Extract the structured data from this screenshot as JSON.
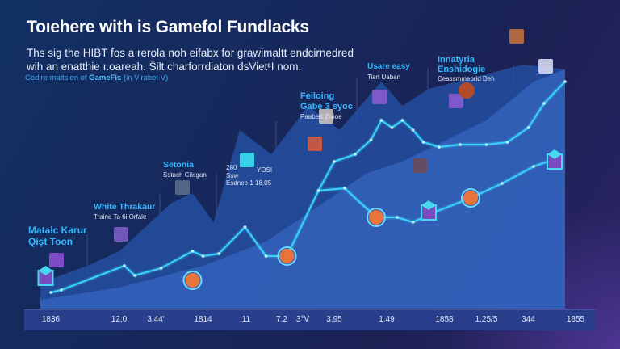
{
  "header": {
    "title": "Toıehere with is Gamefol Fundlacks",
    "subtitle_line1": "Ths sig the HIBT fos a rerola noh eifabx for grawimaltt endcirnedred",
    "subtitle_line2": "wih an enatthie ı.oareah. Ŝilt charforrdiaton dsVietᵋI nom.",
    "tagline_prefix": "Codire maitsion of ",
    "tagline_bold": "GameFis",
    "tagline_suffix": " (in Virabet V)"
  },
  "annotations": [
    {
      "title": "Matalc Karur",
      "title2": "Qişt Toon",
      "sub": ""
    },
    {
      "title": "White Thrakaur",
      "title2": "",
      "sub": "Traine Ta 6i Orfale"
    },
    {
      "title": "Sëtonia",
      "title2": "",
      "sub": "Sstoch Cilegan"
    },
    {
      "title": "",
      "title2": "",
      "sub": "Esdnee 1 18,05",
      "left_label": "280",
      "left_label2": "Ssw",
      "right_label": "YOSI"
    },
    {
      "title": "Feiloing",
      "title2": "Gabe 3 syoc",
      "sub": "Paabert Zivioe"
    },
    {
      "title": "Usare easy",
      "title2": "",
      "sub": "Tisrt Uaban"
    },
    {
      "title": "Innatyria",
      "title2": "Enshidogie",
      "sub": "Ceassmmeprid Deh"
    }
  ],
  "chart_data": {
    "type": "line",
    "title": "Toıehere with is Gamefol Fundlacks",
    "xlabel": "",
    "ylabel": "",
    "xlim": [
      0,
      100
    ],
    "ylim": [
      0,
      100
    ],
    "grid": false,
    "tick_labels": [
      "1836",
      "12,0",
      "3.44'",
      "1814",
      ".11",
      "7.2",
      "3°V",
      "3.95",
      "1.49",
      "1858",
      "1.25/5",
      "344",
      "1855"
    ],
    "tick_x": [
      2,
      15,
      22,
      31,
      39,
      46,
      50,
      56,
      66,
      77,
      85,
      93,
      102
    ],
    "series": [
      {
        "x": [
          2,
          4,
          16,
          18,
          23,
          29,
          31,
          34,
          39,
          43,
          47,
          53,
          58,
          64,
          68,
          71,
          75,
          82,
          88,
          94,
          98
        ],
        "y": [
          6,
          7,
          17,
          13,
          16,
          23,
          21,
          22,
          33,
          21,
          21,
          48,
          49,
          37,
          37,
          35,
          39,
          45,
          51,
          58,
          61
        ]
      },
      {
        "x": [
          53,
          56,
          60,
          63,
          65,
          67,
          69,
          71,
          73,
          76,
          80,
          85,
          89,
          93,
          96,
          100
        ],
        "y": [
          48,
          60,
          63,
          69,
          77,
          74,
          77,
          73,
          68,
          66,
          67,
          67,
          68,
          74,
          84,
          93
        ]
      }
    ],
    "areas": [
      {
        "x": [
          0,
          9,
          15,
          25,
          29,
          33,
          38,
          44,
          51,
          57,
          65,
          69,
          74,
          83,
          92,
          100
        ],
        "y": [
          10,
          17,
          23,
          43,
          47,
          35,
          73,
          63,
          83,
          73,
          93,
          83,
          90,
          95,
          100,
          98
        ]
      },
      {
        "x": [
          0,
          15,
          31,
          43,
          54,
          62,
          69,
          85,
          94,
          100
        ],
        "y": [
          3,
          8,
          17,
          27,
          43,
          55,
          60,
          77,
          93,
          98
        ]
      }
    ],
    "markers": [
      {
        "x": 1,
        "y": 12,
        "kind": "cube"
      },
      {
        "x": 29,
        "y": 11,
        "kind": "coin"
      },
      {
        "x": 47,
        "y": 21,
        "kind": "coin"
      },
      {
        "x": 64,
        "y": 37,
        "kind": "coin"
      },
      {
        "x": 74,
        "y": 39,
        "kind": "cube"
      },
      {
        "x": 82,
        "y": 45,
        "kind": "coin"
      },
      {
        "x": 98,
        "y": 60,
        "kind": "cube"
      }
    ],
    "colors": {
      "line": "#39d4ff",
      "area_back": "#244c9c",
      "area_front": "#3566c0",
      "coin": "#e8743c",
      "cube": "#45d8f0"
    }
  }
}
